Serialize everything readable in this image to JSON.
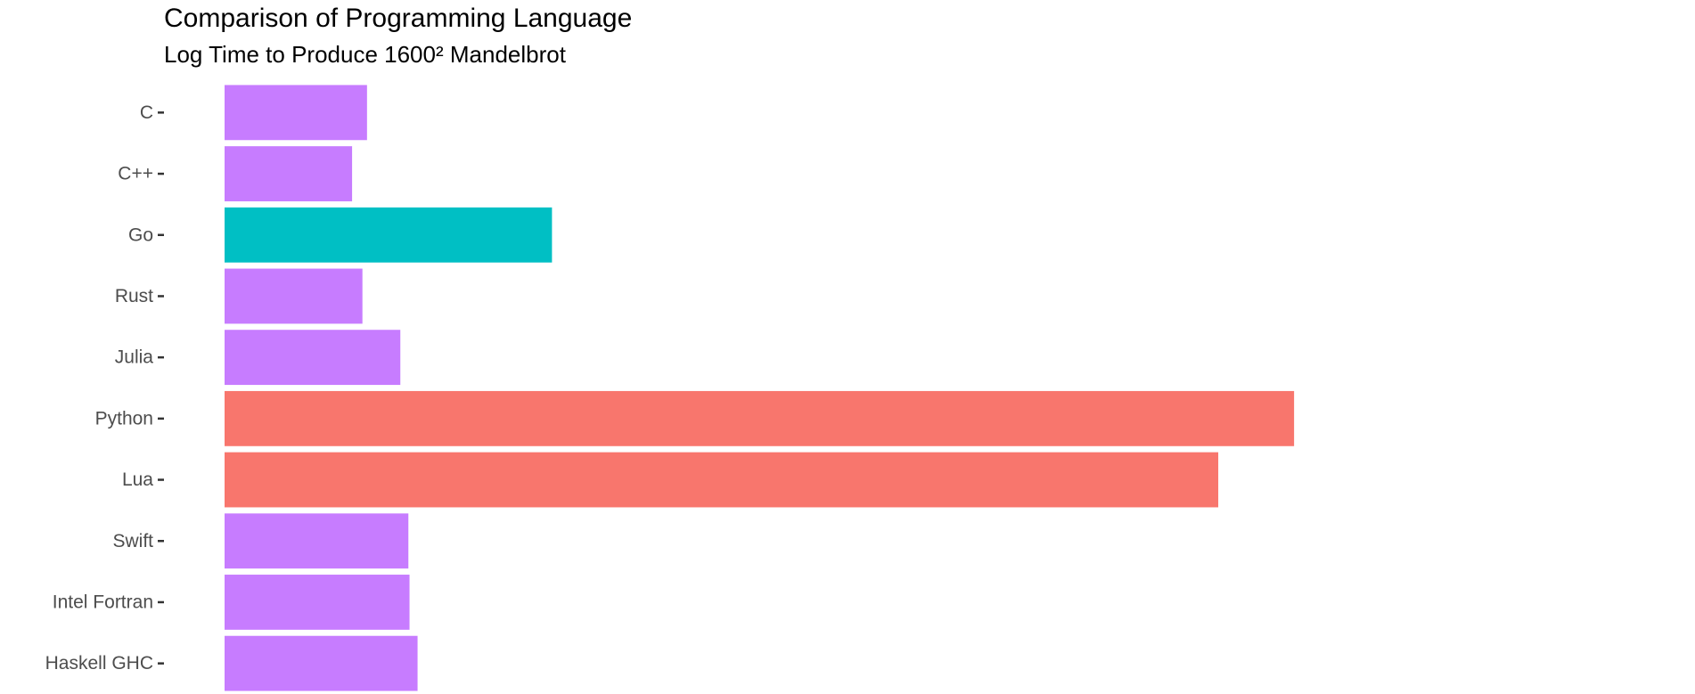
{
  "chart_data": {
    "type": "bar",
    "orientation": "horizontal",
    "title": "Comparison of Programming Language",
    "subtitle": "Log Time to Produce 1600² Mandelbrot",
    "xlabel": "",
    "ylabel": "",
    "categories": [
      "C",
      "C++",
      "Go",
      "Rust",
      "Julia",
      "Python",
      "Lua",
      "Swift",
      "Intel Fortran",
      "Haskell GHC"
    ],
    "values": [
      1.24,
      1.11,
      2.85,
      1.2,
      1.53,
      9.31,
      8.65,
      1.6,
      1.61,
      1.68
    ],
    "bar_colors": [
      "#C77CFF",
      "#C77CFF",
      "#00BFC4",
      "#C77CFF",
      "#C77CFF",
      "#F8766D",
      "#F8766D",
      "#C77CFF",
      "#C77CFF",
      "#C77CFF"
    ],
    "xlim": [
      0,
      12.8
    ],
    "grid": false,
    "legend": "none"
  }
}
